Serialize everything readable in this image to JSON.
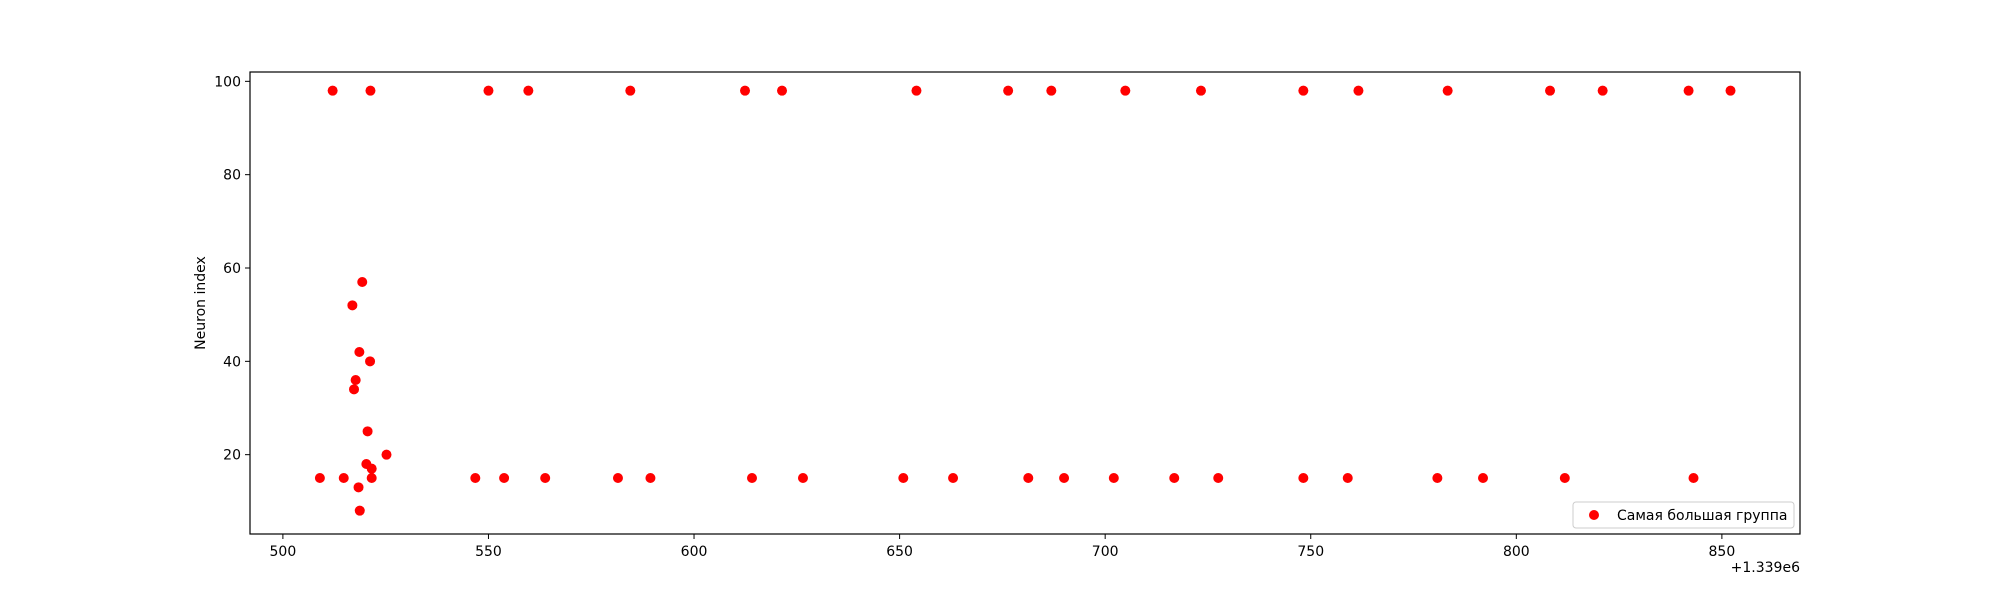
{
  "chart_data": {
    "type": "scatter",
    "title": "",
    "xlabel": "",
    "ylabel": "Neuron index",
    "x_offset_label": "+1.339e6",
    "xlim": [
      492,
      869
    ],
    "ylim": [
      3,
      102
    ],
    "xticks": [
      500,
      550,
      600,
      650,
      700,
      750,
      800,
      850
    ],
    "xtick_labels": [
      "500",
      "550",
      "600",
      "650",
      "700",
      "750",
      "800",
      "850"
    ],
    "yticks": [
      20,
      40,
      60,
      80,
      100
    ],
    "ytick_labels": [
      "20",
      "40",
      "60",
      "80",
      "100"
    ],
    "grid": false,
    "legend_position": "lower right",
    "color": "#ff0000",
    "series": [
      {
        "name": "Самая большая группа",
        "points": [
          [
            512.1,
            98
          ],
          [
            521.3,
            98
          ],
          [
            550.0,
            98
          ],
          [
            559.7,
            98
          ],
          [
            584.5,
            98
          ],
          [
            612.4,
            98
          ],
          [
            621.4,
            98
          ],
          [
            654.1,
            98
          ],
          [
            676.4,
            98
          ],
          [
            686.9,
            98
          ],
          [
            704.9,
            98
          ],
          [
            723.3,
            98
          ],
          [
            748.2,
            98
          ],
          [
            761.6,
            98
          ],
          [
            783.3,
            98
          ],
          [
            808.2,
            98
          ],
          [
            821.0,
            98
          ],
          [
            841.9,
            98
          ],
          [
            852.1,
            98
          ],
          [
            509.0,
            15
          ],
          [
            514.8,
            15
          ],
          [
            521.6,
            15
          ],
          [
            546.8,
            15
          ],
          [
            553.8,
            15
          ],
          [
            563.8,
            15
          ],
          [
            581.5,
            15
          ],
          [
            589.4,
            15
          ],
          [
            614.1,
            15
          ],
          [
            626.5,
            15
          ],
          [
            650.9,
            15
          ],
          [
            663.0,
            15
          ],
          [
            681.3,
            15
          ],
          [
            690.0,
            15
          ],
          [
            702.1,
            15
          ],
          [
            716.8,
            15
          ],
          [
            727.5,
            15
          ],
          [
            748.2,
            15
          ],
          [
            759.0,
            15
          ],
          [
            780.8,
            15
          ],
          [
            791.9,
            15
          ],
          [
            811.8,
            15
          ],
          [
            843.1,
            15
          ],
          [
            516.9,
            52
          ],
          [
            519.3,
            57
          ],
          [
            518.6,
            42
          ],
          [
            521.2,
            40
          ],
          [
            517.7,
            36
          ],
          [
            517.3,
            34
          ],
          [
            520.6,
            25
          ],
          [
            525.2,
            20
          ],
          [
            520.3,
            18
          ],
          [
            521.6,
            17
          ],
          [
            518.4,
            13
          ],
          [
            518.7,
            8
          ]
        ]
      }
    ]
  }
}
